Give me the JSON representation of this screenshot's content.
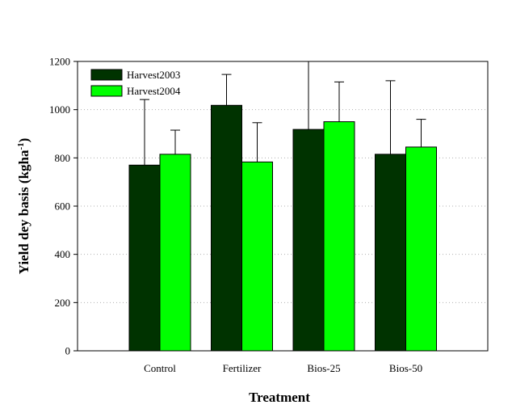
{
  "chart_data": {
    "type": "bar",
    "categories": [
      "Control",
      "Fertilizer",
      "Bios-25",
      "Bios-50"
    ],
    "series": [
      {
        "name": "Harvest2003",
        "values": [
          770,
          1018,
          918,
          815
        ],
        "errors": [
          272,
          128,
          312,
          305
        ],
        "color": "#003300"
      },
      {
        "name": "Harvest2004",
        "values": [
          815,
          783,
          950,
          845
        ],
        "errors": [
          100,
          163,
          165,
          115
        ],
        "color": "#00ff00"
      }
    ],
    "xlabel": "Treatment",
    "ylabel_main": "Yield dey basis (kgha",
    "ylabel_sup": "-1",
    "ylabel_close": ")",
    "ylim": [
      0,
      1200
    ],
    "yticks": [
      0,
      200,
      400,
      600,
      800,
      1000,
      1200
    ],
    "grid": true,
    "legend_position": "top-left"
  }
}
